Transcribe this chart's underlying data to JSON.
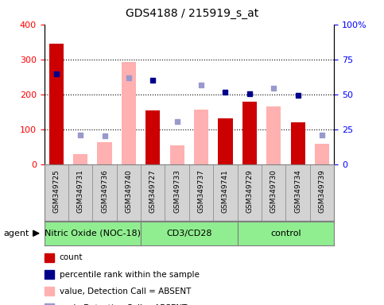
{
  "title": "GDS4188 / 215919_s_at",
  "samples": [
    "GSM349725",
    "GSM349731",
    "GSM349736",
    "GSM349740",
    "GSM349727",
    "GSM349733",
    "GSM349737",
    "GSM349741",
    "GSM349729",
    "GSM349730",
    "GSM349734",
    "GSM349739"
  ],
  "groups": [
    {
      "label": "Nitric Oxide (NOC-18)",
      "span": [
        0,
        4
      ],
      "color": "#90EE90"
    },
    {
      "label": "CD3/CD28",
      "span": [
        4,
        8
      ],
      "color": "#90EE90"
    },
    {
      "label": "control",
      "span": [
        8,
        12
      ],
      "color": "#90EE90"
    }
  ],
  "bar_values_present": [
    345,
    null,
    null,
    null,
    155,
    null,
    null,
    132,
    180,
    null,
    120,
    null
  ],
  "bar_values_absent": [
    null,
    30,
    65,
    292,
    null,
    55,
    158,
    null,
    null,
    167,
    null,
    60
  ],
  "rank_present": [
    258,
    null,
    null,
    null,
    240,
    null,
    null,
    208,
    202,
    null,
    198,
    null
  ],
  "rank_absent": [
    null,
    85,
    82,
    248,
    null,
    122,
    227,
    null,
    null,
    218,
    null,
    85
  ],
  "ylim_left": [
    0,
    400
  ],
  "yticks_left": [
    0,
    100,
    200,
    300,
    400
  ],
  "yticks_right": [
    0,
    25,
    50,
    75,
    100
  ],
  "ytick_labels_right": [
    "0",
    "25",
    "50",
    "75",
    "100%"
  ],
  "color_bar_present": "#cc0000",
  "color_bar_absent": "#ffb0b0",
  "color_rank_present": "#00008B",
  "color_rank_absent": "#9999cc",
  "legend_items": [
    {
      "label": "count",
      "color": "#cc0000"
    },
    {
      "label": "percentile rank within the sample",
      "color": "#00008B"
    },
    {
      "label": "value, Detection Call = ABSENT",
      "color": "#ffb0b0"
    },
    {
      "label": "rank, Detection Call = ABSENT",
      "color": "#9999cc"
    }
  ]
}
